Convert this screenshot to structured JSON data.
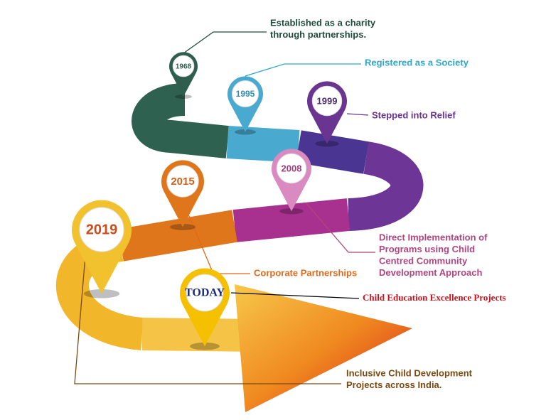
{
  "milestones": [
    {
      "label": "1968",
      "lines": [
        "Established as a charity",
        "through partnerships."
      ]
    },
    {
      "label": "1995",
      "lines": [
        "Registered as a Society"
      ]
    },
    {
      "label": "1999",
      "lines": [
        "Stepped into Relief"
      ]
    },
    {
      "label": "2008",
      "lines": [
        "Direct Implementation of",
        "Programs using Child",
        "Centred Community",
        "Development Approach"
      ]
    },
    {
      "label": "2015",
      "lines": [
        "Corporate Partnerships"
      ]
    },
    {
      "label": "TODAY",
      "lines": [
        "Child Education Excellence Projects"
      ]
    },
    {
      "label": "2019",
      "lines": [
        "Inclusive Child Development",
        "Projects across India."
      ]
    }
  ]
}
